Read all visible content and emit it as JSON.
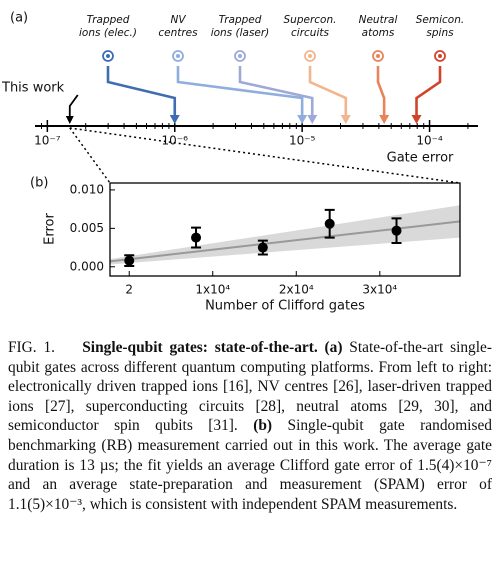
{
  "chart_data": [
    {
      "type": "number_line",
      "panel_label": "(a)",
      "xlabel": "Gate error",
      "log_scale": true,
      "xlim": [
        8e-08,
        0.00024
      ],
      "xticks": [
        {
          "value": 1e-07,
          "label": "10⁻⁷"
        },
        {
          "value": 1e-06,
          "label": "10⁻⁶"
        },
        {
          "value": 1e-05,
          "label": "10⁻⁵"
        },
        {
          "value": 0.0001,
          "label": "10⁻⁴"
        }
      ],
      "xminorticks": [
        9e-08,
        2e-07,
        3e-07,
        4e-07,
        5e-07,
        6e-07,
        7e-07,
        8e-07,
        9e-07,
        2e-06,
        3e-06,
        4e-06,
        5e-06,
        6e-06,
        7e-06,
        8e-06,
        9e-06,
        2e-05,
        3e-05,
        4e-05,
        5e-05,
        6e-05,
        7e-05,
        8e-05,
        9e-05,
        0.0002
      ],
      "highlight": {
        "name": "This work",
        "value": 1.5e-07,
        "color": "#000000"
      },
      "categories": [
        [
          "Trapped",
          "ions (elec.)"
        ],
        [
          "NV",
          "centres"
        ],
        [
          "Trapped",
          "ions (laser)"
        ],
        [
          "Supercon.",
          "circuits"
        ],
        [
          "Neutral",
          "atoms"
        ],
        [
          "Semicon.",
          "spins"
        ]
      ],
      "values": [
        1e-06,
        1e-05,
        1.2e-05,
        2.2e-05,
        4.4e-05,
        7.9e-05
      ],
      "colors": [
        "#3e6db3",
        "#8eaede",
        "#9ea9d9",
        "#f2b58d",
        "#e8845a",
        "#d0452a"
      ]
    },
    {
      "type": "scatter",
      "panel_label": "(b)",
      "xlabel": "Number of Clifford gates",
      "ylabel": "Error",
      "xlim": [
        -2300,
        39600
      ],
      "ylim": [
        -0.0012,
        0.0109
      ],
      "xticks": [
        2,
        {
          "value": 10000,
          "label": "1x10⁴"
        },
        {
          "value": 20000,
          "label": "2x10⁴"
        },
        {
          "value": 30000,
          "label": "3x10⁴"
        }
      ],
      "yticks": [
        {
          "value": 0,
          "label": "0.000"
        },
        {
          "value": 0.005,
          "label": "0.005"
        },
        {
          "value": 0.01,
          "label": "0.010"
        }
      ],
      "x": [
        2,
        8000,
        16000,
        24000,
        32000
      ],
      "values": [
        0.0008,
        0.0038,
        0.0025,
        0.0056,
        0.0047
      ],
      "errors": [
        0.0007,
        0.0013,
        0.0009,
        0.0018,
        0.0016
      ],
      "color": "#000000",
      "fit": {
        "x": [
          -2300,
          39600
        ],
        "values": [
          0.0007,
          0.0059
        ],
        "lower": [
          0.0003,
          0.0038
        ],
        "upper": [
          0.001,
          0.008
        ],
        "color": "#999999",
        "band_color": "#d9d9d9"
      }
    }
  ],
  "caption": {
    "label": "FIG. 1.",
    "title": "Single-qubit gates: state-of-the-art.",
    "a_label": "(a)",
    "a_text": "State-of-the-art single-qubit gates across different quantum computing platforms. From left to right: electronically driven trapped ions [16], NV centres [26], laser-driven trapped ions [27], superconducting circuits [28], neutral atoms [29, 30], and semiconductor spin qubits [31].",
    "b_label": "(b)",
    "b_text": "Single-qubit gate randomised benchmarking (RB) measurement carried out in this work. The average gate duration is 13 µs; the fit yields an average Clifford gate error of 1.5(4)×10⁻⁷ and an average state-preparation and measurement (SPAM) error of 1.1(5)×10⁻³, which is consistent with independent SPAM measurements."
  }
}
